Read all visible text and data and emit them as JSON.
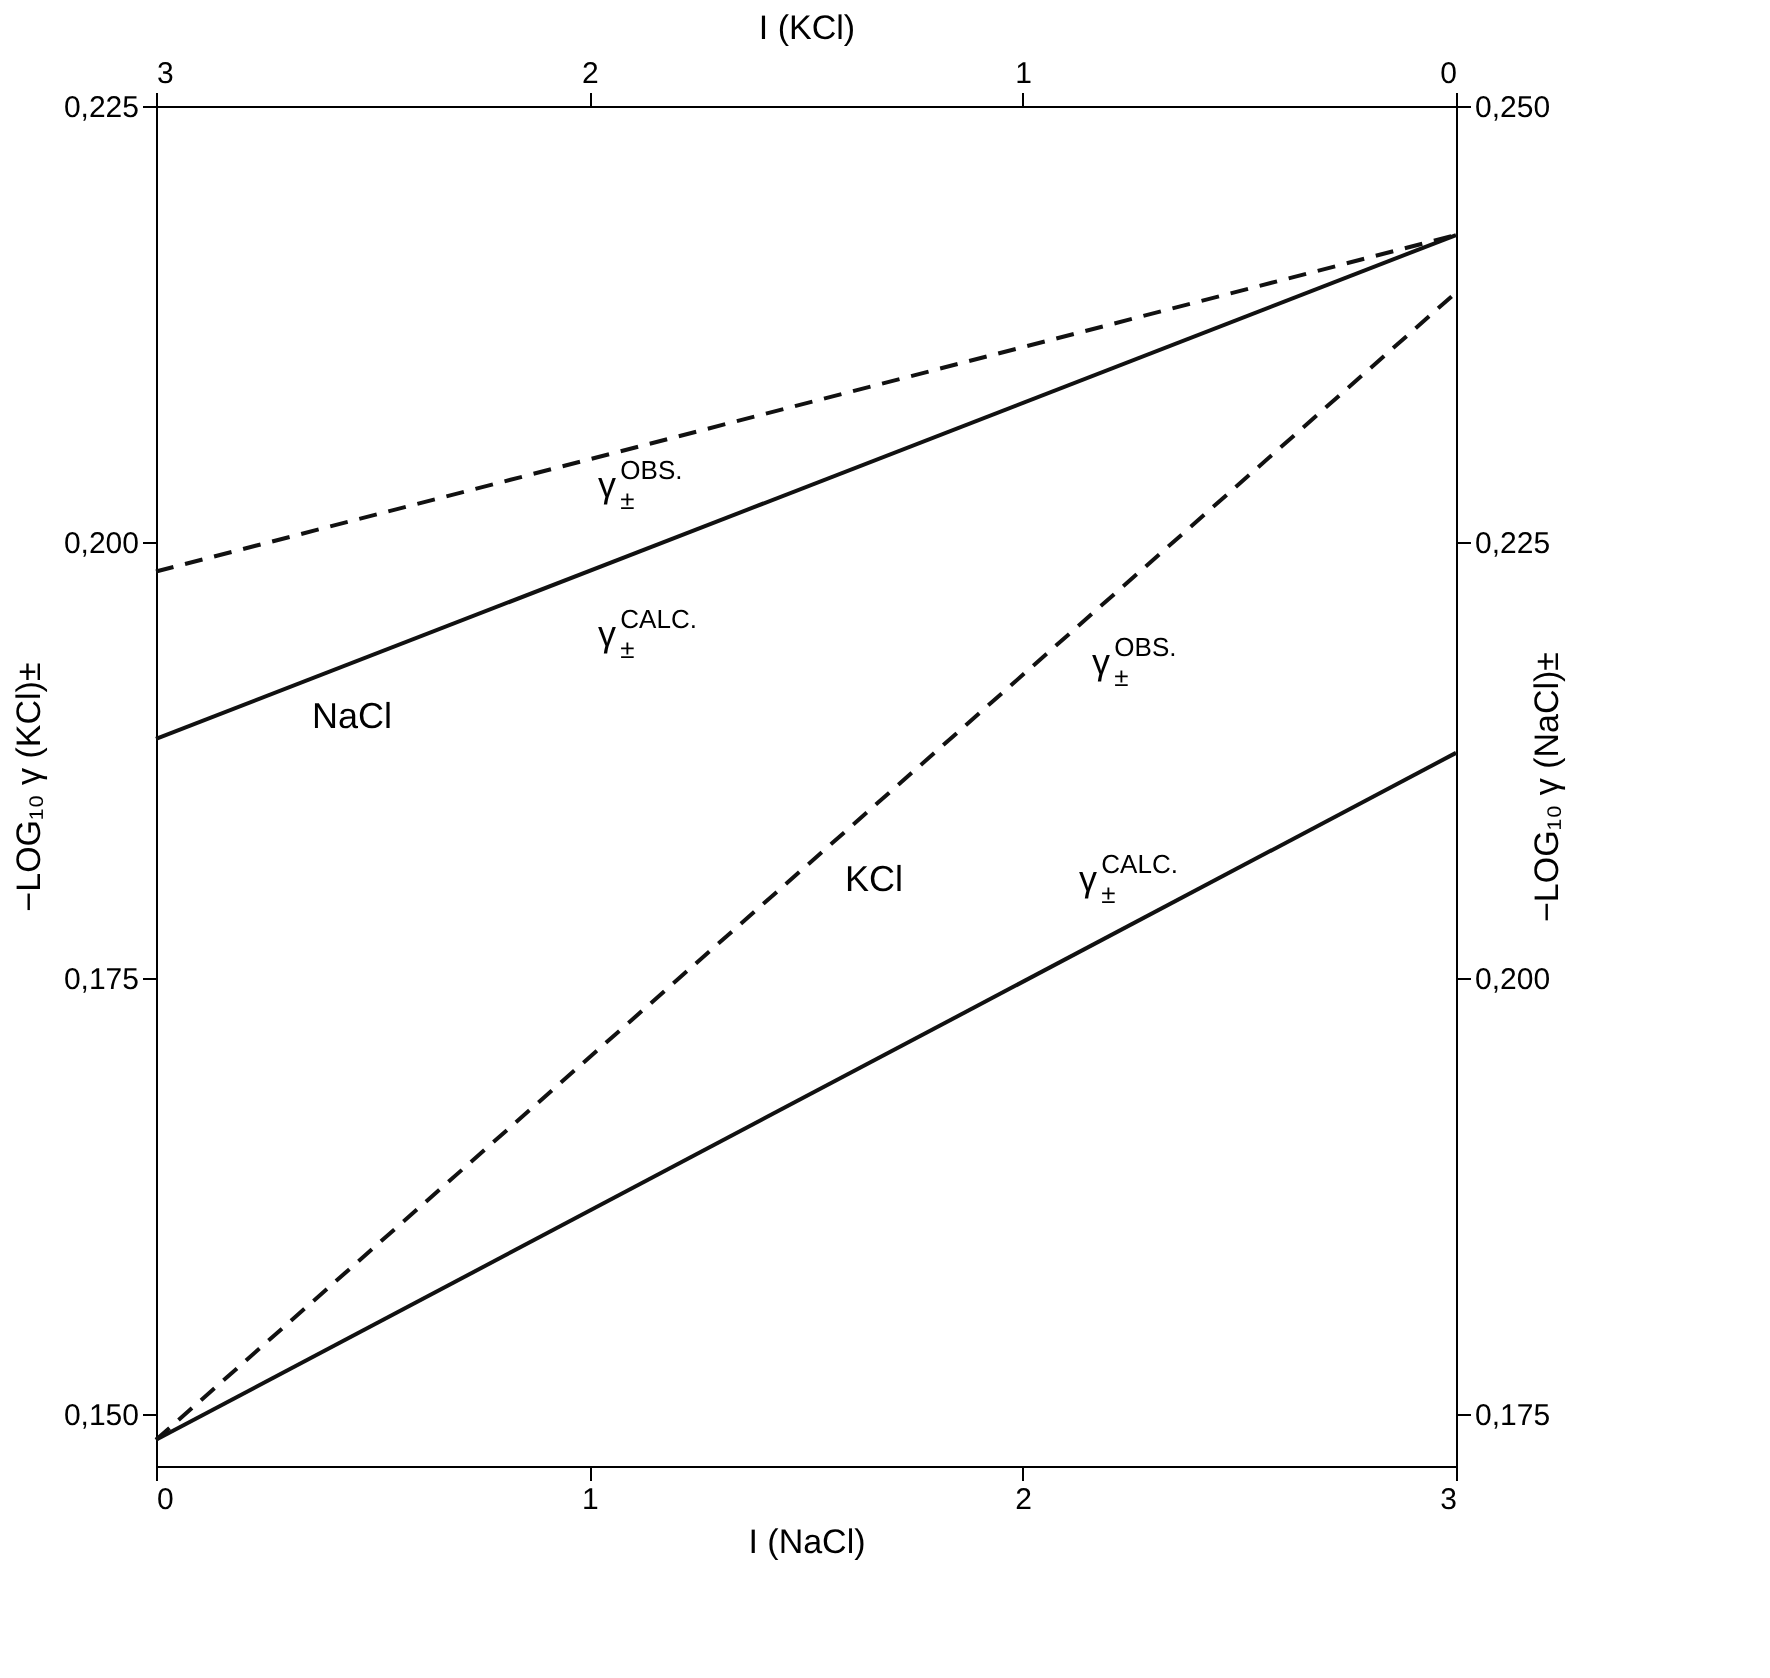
{
  "chart_data": {
    "type": "line",
    "xlabel": "I (NaCl)",
    "x2label": "I (KCl)",
    "ylabel": "−LOG₁₀ γ (KCl)±",
    "y2label": "−LOG₁₀ γ (NaCl)±",
    "x": [
      0,
      3
    ],
    "series": [
      {
        "color": "#111111",
        "line_style": "dashed",
        "values": [
          0.1983,
          0.2176
        ]
      },
      {
        "color": "#111111",
        "line_style": "solid",
        "values": [
          0.1887,
          0.2176
        ]
      },
      {
        "color": "#111111",
        "line_style": "dashed",
        "values": [
          0.1485,
          0.2143
        ]
      },
      {
        "color": "#111111",
        "line_style": "solid",
        "values": [
          0.1485,
          0.1879
        ]
      }
    ],
    "xlim": [
      0,
      3
    ],
    "xticks": [
      0,
      1,
      2,
      3
    ],
    "x2lim": [
      3,
      0
    ],
    "x2ticks": [
      3,
      2,
      1,
      0
    ],
    "ylim": [
      0.147,
      0.225
    ],
    "yticks": [
      {
        "value": 0.15,
        "label": "0,150"
      },
      {
        "value": 0.175,
        "label": "0,175"
      },
      {
        "value": 0.2,
        "label": "0,200"
      },
      {
        "value": 0.225,
        "label": "0,225"
      }
    ],
    "y2lim": [
      0.172,
      0.25
    ],
    "y2ticks": [
      {
        "value": 0.175,
        "label": "0,175"
      },
      {
        "value": 0.2,
        "label": "0,200"
      },
      {
        "value": 0.225,
        "label": "0,225"
      },
      {
        "value": 0.25,
        "label": "0,250"
      }
    ],
    "grid": false,
    "annotations": [
      "γ$_{±}$$^{OBS.}$",
      "γ$_{±}$$^{CALC.}$",
      "γ$_{±}$$^{OBS.}$",
      "γ$_{±}$$^{CALC.}$",
      "NaCl",
      "KCl"
    ]
  }
}
